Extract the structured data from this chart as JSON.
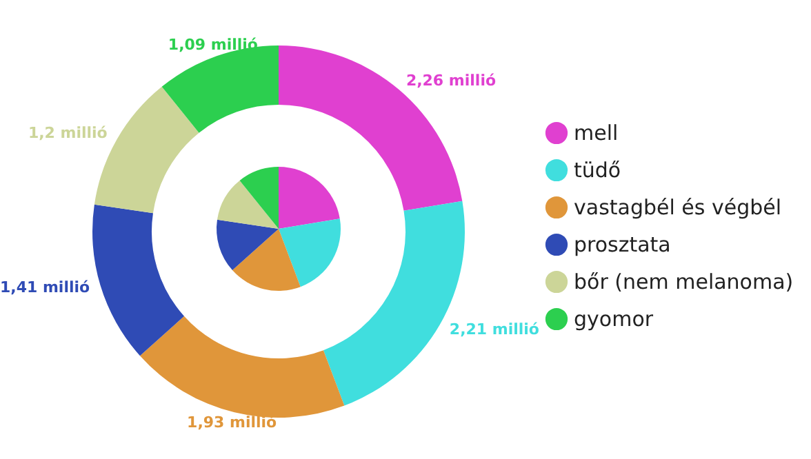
{
  "chart_data": [
    {
      "type": "donut",
      "categories": [
        "mell",
        "tüdő",
        "vastagbél és végbél",
        "prosztata",
        "bőr (nem melanoma)",
        "gyomor"
      ],
      "values": [
        2.26,
        2.21,
        1.93,
        1.41,
        1.2,
        1.09
      ],
      "value_labels": [
        "2,26 millió",
        "2,21 millió",
        "1,93 millió",
        "1,41 millió",
        "1,2 millió",
        "1,09 millió"
      ],
      "colors": [
        "#e040d0",
        "#40dede",
        "#e0963a",
        "#2f4bb5",
        "#ccd598",
        "#2ccf4f"
      ],
      "legend": "right"
    },
    {
      "type": "pie",
      "categories": [
        null,
        null,
        null,
        null,
        null,
        null
      ],
      "values": [
        22.38,
        21.88,
        19.11,
        13.96,
        11.88,
        10.79
      ],
      "colors": [
        "#e040d0",
        "#40dede",
        "#e0963a",
        "#2f4bb5",
        "#ccd598",
        "#2ccf4f"
      ]
    }
  ]
}
